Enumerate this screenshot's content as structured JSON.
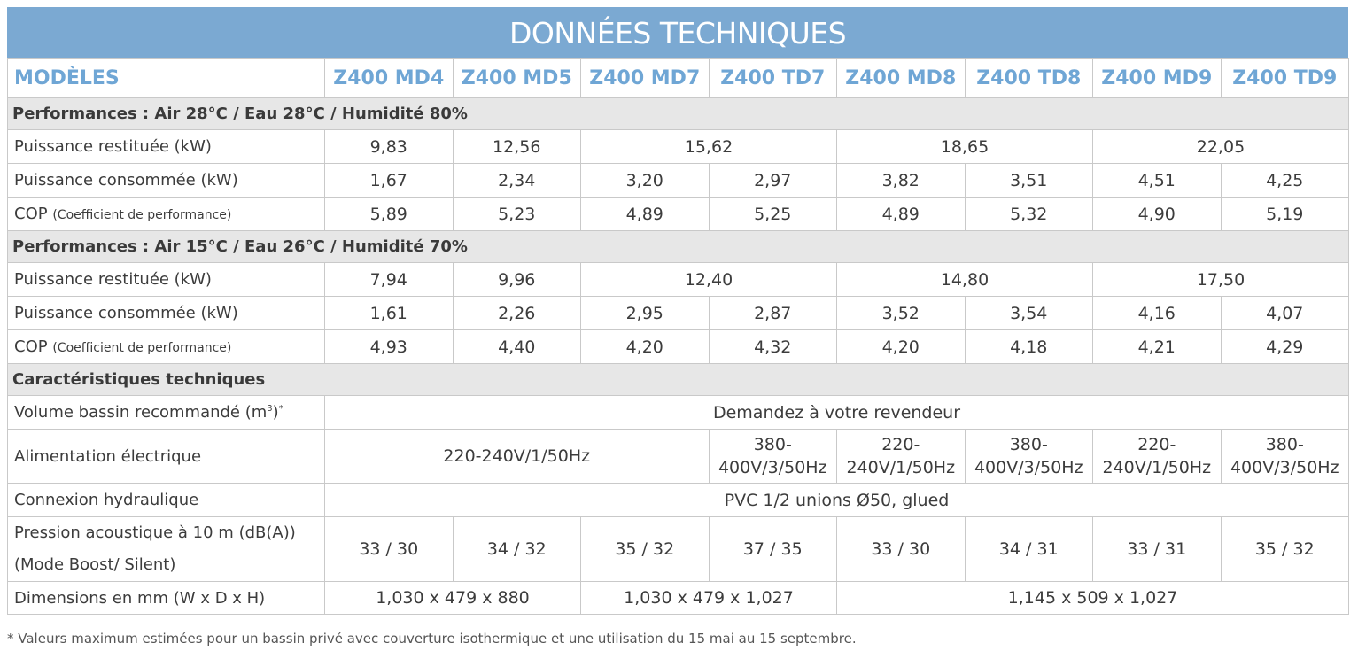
{
  "title": "DONNÉES TECHNIQUES",
  "models_label": "MODÈLES",
  "models": [
    "Z400 MD4",
    "Z400 MD5",
    "Z400 MD7",
    "Z400 TD7",
    "Z400 MD8",
    "Z400 TD8",
    "Z400 MD9",
    "Z400 TD9"
  ],
  "perf1": {
    "heading": "Performances : Air 28°C / Eau 28°C / Humidité 80%",
    "restituee_label": "Puissance restituée (kW)",
    "restituee": [
      "9,83",
      "12,56",
      "15,62",
      "18,65",
      "22,05"
    ],
    "consommee_label": "Puissance consommée (kW)",
    "consommee": [
      "1,67",
      "2,34",
      "3,20",
      "2,97",
      "3,82",
      "3,51",
      "4,51",
      "4,25"
    ],
    "cop_label": "COP",
    "cop_note": "(Coefficient de performance)",
    "cop": [
      "5,89",
      "5,23",
      "4,89",
      "5,25",
      "4,89",
      "5,32",
      "4,90",
      "5,19"
    ]
  },
  "perf2": {
    "heading": "Performances : Air 15°C / Eau 26°C / Humidité 70%",
    "restituee_label": "Puissance restituée (kW)",
    "restituee": [
      "7,94",
      "9,96",
      "12,40",
      "14,80",
      "17,50"
    ],
    "consommee_label": "Puissance consommée (kW)",
    "consommee": [
      "1,61",
      "2,26",
      "2,95",
      "2,87",
      "3,52",
      "3,54",
      "4,16",
      "4,07"
    ],
    "cop_label": "COP",
    "cop_note": "(Coefficient de performance)",
    "cop": [
      "4,93",
      "4,40",
      "4,20",
      "4,32",
      "4,20",
      "4,18",
      "4,21",
      "4,29"
    ]
  },
  "tech": {
    "heading": "Caractéristiques techniques",
    "volume_label": "Volume bassin recommandé (m",
    "volume_sup": "3",
    "volume_close": ")",
    "volume_star": "*",
    "volume_value": "Demandez à votre revendeur",
    "alim_label": "Alimentation électrique",
    "alim_main": "220-240V/1/50Hz",
    "alim_td7": [
      "380-",
      "400V/3/50Hz"
    ],
    "alim_md8": [
      "220-",
      "240V/1/50Hz"
    ],
    "alim_td8": [
      "380-",
      "400V/3/50Hz"
    ],
    "alim_md9": [
      "220-",
      "240V/1/50Hz"
    ],
    "alim_td9": [
      "380-",
      "400V/3/50Hz"
    ],
    "hydro_label": "Connexion hydraulique",
    "hydro_value": "PVC 1/2 unions Ø50, glued",
    "acoustic_label_1": "Pression acoustique à 10 m (dB(A))",
    "acoustic_label_2": "(Mode Boost/ Silent)",
    "acoustic": [
      "33 / 30",
      "34 / 32",
      "35 / 32",
      "37 / 35",
      "33 / 30",
      "34 / 31",
      "33 / 31",
      "35 / 32"
    ],
    "dim_label": "Dimensions en mm (W x D x H)",
    "dims": [
      "1,030 x 479 x 880",
      "1,030 x 479 x 1,027",
      "1,145 x 509 x 1,027"
    ]
  },
  "footnote": "* Valeurs maximum estimées pour un bassin privé avec couverture isothermique et une utilisation du 15 mai au 15 septembre."
}
